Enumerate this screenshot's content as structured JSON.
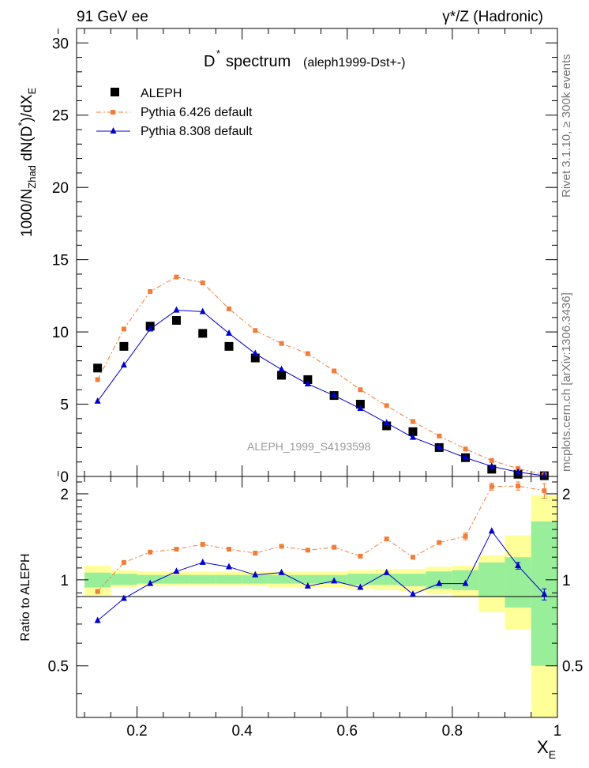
{
  "header": {
    "left": "91 GeV ee",
    "right": "γ*/Z (Hadronic)"
  },
  "side_text": {
    "rivet": "Rivet 3.1.10, ≥ 300k events",
    "mcplots": "mcplots.cern.ch [arXiv:1306.3436]"
  },
  "colors": {
    "aleph": "#000000",
    "pythia6": "#f07d3a",
    "pythia8": "#0000cc",
    "band_inner": "#99ee99",
    "band_outer": "#ffff99"
  },
  "chart_data": [
    {
      "type": "scatter",
      "panel": "main",
      "title_main": "D",
      "title_sup": "*",
      "title_rest": "spectrum",
      "title_note": "(aleph1999-Dst+-)",
      "watermark": "ALEPH_1999_S4193598",
      "ylabel": "1000/N_Zhad dN(D*)/dX_E",
      "ylim": [
        0,
        31
      ],
      "yticks": [
        0,
        5,
        10,
        15,
        20,
        25,
        30
      ],
      "xlim": [
        0.085,
        1.0
      ],
      "x": [
        0.125,
        0.175,
        0.225,
        0.275,
        0.325,
        0.375,
        0.425,
        0.475,
        0.525,
        0.575,
        0.625,
        0.675,
        0.725,
        0.775,
        0.825,
        0.875,
        0.925,
        0.975
      ],
      "series": [
        {
          "name": "ALEPH",
          "marker": "square",
          "values": [
            7.5,
            9.0,
            10.4,
            10.8,
            9.9,
            9.0,
            8.2,
            7.0,
            6.7,
            5.6,
            5.0,
            3.5,
            3.1,
            2.0,
            1.3,
            0.5,
            0.15,
            0.05
          ]
        },
        {
          "name": "Pythia 6.426 default",
          "marker": "small-square",
          "line": "dash-dot",
          "values": [
            6.7,
            10.2,
            12.8,
            13.8,
            13.4,
            11.6,
            10.1,
            9.2,
            8.5,
            7.3,
            6.0,
            4.9,
            3.8,
            2.8,
            1.9,
            1.1,
            0.55,
            0.12
          ]
        },
        {
          "name": "Pythia 8.308 default",
          "marker": "triangle",
          "line": "solid",
          "values": [
            5.2,
            7.7,
            10.2,
            11.5,
            11.4,
            9.9,
            8.5,
            7.4,
            6.4,
            5.6,
            4.7,
            3.7,
            2.7,
            2.0,
            1.3,
            0.7,
            0.3,
            0.05
          ]
        }
      ]
    },
    {
      "type": "line",
      "panel": "ratio",
      "ylabel": "Ratio to ALEPH",
      "xlabel": "X_E",
      "ylim": [
        0.33,
        2.3
      ],
      "yticks": [
        0.5,
        1,
        2
      ],
      "xticks": [
        0.2,
        0.4,
        0.6,
        0.8,
        1
      ],
      "x": [
        0.125,
        0.175,
        0.225,
        0.275,
        0.325,
        0.375,
        0.425,
        0.475,
        0.525,
        0.575,
        0.625,
        0.675,
        0.725,
        0.775,
        0.825,
        0.875,
        0.925,
        0.975
      ],
      "band_outer": [
        [
          0.88,
          1.12
        ],
        [
          0.94,
          1.08
        ],
        [
          0.95,
          1.07
        ],
        [
          0.95,
          1.07
        ],
        [
          0.95,
          1.07
        ],
        [
          0.95,
          1.07
        ],
        [
          0.95,
          1.07
        ],
        [
          0.94,
          1.07
        ],
        [
          0.94,
          1.07
        ],
        [
          0.94,
          1.07
        ],
        [
          0.93,
          1.08
        ],
        [
          0.92,
          1.09
        ],
        [
          0.91,
          1.09
        ],
        [
          0.89,
          1.11
        ],
        [
          0.87,
          1.12
        ],
        [
          0.77,
          1.22
        ],
        [
          0.67,
          1.43
        ],
        [
          0.0,
          1.98
        ]
      ],
      "band_inner": [
        [
          0.94,
          1.06
        ],
        [
          0.96,
          1.05
        ],
        [
          0.97,
          1.04
        ],
        [
          0.97,
          1.04
        ],
        [
          0.97,
          1.04
        ],
        [
          0.97,
          1.04
        ],
        [
          0.97,
          1.04
        ],
        [
          0.97,
          1.04
        ],
        [
          0.97,
          1.04
        ],
        [
          0.97,
          1.04
        ],
        [
          0.96,
          1.05
        ],
        [
          0.96,
          1.05
        ],
        [
          0.95,
          1.05
        ],
        [
          0.93,
          1.07
        ],
        [
          0.92,
          1.08
        ],
        [
          0.87,
          1.15
        ],
        [
          0.8,
          1.2
        ],
        [
          0.5,
          1.6
        ]
      ],
      "series": [
        {
          "name": "Pythia 6.426 default",
          "values": [
            0.91,
            1.15,
            1.25,
            1.28,
            1.33,
            1.28,
            1.24,
            1.31,
            1.27,
            1.3,
            1.21,
            1.39,
            1.2,
            1.35,
            1.42,
            2.12,
            2.13,
            2.05
          ],
          "errors": [
            0,
            0,
            0,
            0,
            0,
            0,
            0,
            0,
            0,
            0,
            0,
            0,
            0,
            0,
            0.04,
            0.06,
            0.07,
            0.12
          ]
        },
        {
          "name": "Pythia 8.308 default",
          "values": [
            0.72,
            0.86,
            0.97,
            1.07,
            1.15,
            1.11,
            1.04,
            1.06,
            0.95,
            0.99,
            0.94,
            1.06,
            0.89,
            0.97,
            0.97,
            1.48,
            1.12,
            0.89
          ],
          "errors": [
            0,
            0,
            0,
            0,
            0,
            0,
            0,
            0,
            0,
            0,
            0,
            0,
            0,
            0,
            0,
            0,
            0.03,
            0.04
          ]
        }
      ]
    }
  ]
}
